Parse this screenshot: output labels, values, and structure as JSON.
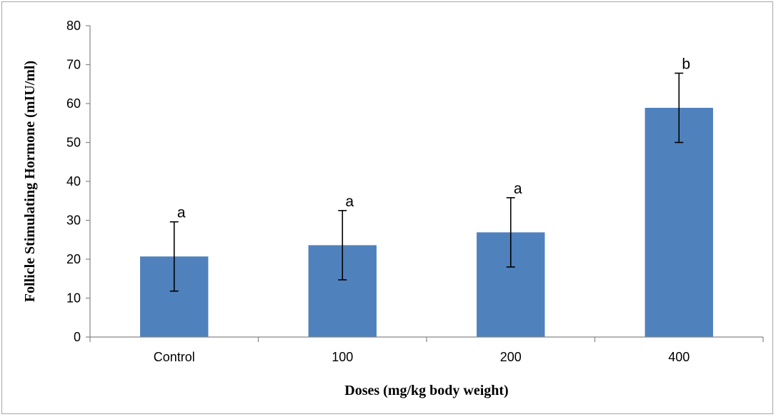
{
  "chart_data": {
    "type": "bar",
    "categories": [
      "Control",
      "100",
      "200",
      "400"
    ],
    "values": [
      20.7,
      23.6,
      26.9,
      58.9
    ],
    "errors": [
      8.9,
      8.9,
      8.9,
      8.9
    ],
    "significance_labels": [
      "a",
      "a",
      "a",
      "b"
    ],
    "xlabel": "Doses (mg/kg body weight)",
    "ylabel": "Follicle Stimulating Hormone (mIU/ml)",
    "ylim": [
      0,
      80
    ],
    "yticks": [
      "0",
      "10",
      "20",
      "30",
      "40",
      "50",
      "60",
      "70",
      "80"
    ],
    "bar_color": "#4f81bd",
    "grid": false,
    "legend": "none"
  }
}
